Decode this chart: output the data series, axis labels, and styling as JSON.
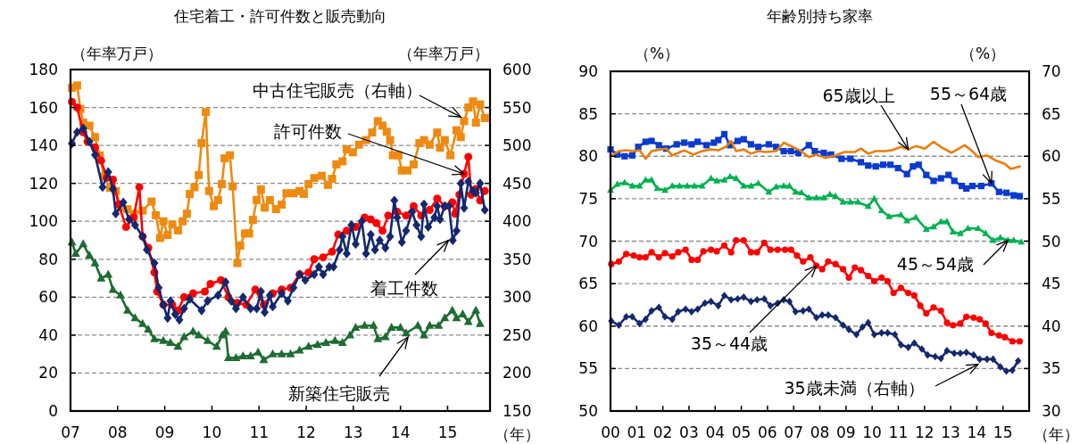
{
  "chart_data": [
    {
      "type": "line",
      "title": "住宅着工・許可件数と販売動向",
      "xlabel": "（年）",
      "ylabel": "（年率万戸）",
      "y2label": "（年率万戸）",
      "xlim": [
        2007,
        2015.9
      ],
      "xticks": [
        {
          "value": 2007,
          "label": "07"
        },
        {
          "value": 2008,
          "label": "08"
        },
        {
          "value": 2009,
          "label": "09"
        },
        {
          "value": 2010,
          "label": "10"
        },
        {
          "value": 2011,
          "label": "11"
        },
        {
          "value": 2012,
          "label": "12"
        },
        {
          "value": 2013,
          "label": "13"
        },
        {
          "value": 2014,
          "label": "14"
        },
        {
          "value": 2015,
          "label": "15"
        }
      ],
      "ylim": [
        0,
        180
      ],
      "yticks": [
        0,
        20,
        40,
        60,
        80,
        100,
        120,
        140,
        160,
        180
      ],
      "y2lim": [
        150,
        600
      ],
      "y2ticks": [
        150,
        200,
        250,
        300,
        350,
        400,
        450,
        500,
        550,
        600
      ],
      "grid": "y",
      "annotations": [
        {
          "text": "中古住宅販売（右軸）",
          "x": 2015.28,
          "y": 155
        },
        {
          "text": "許可件数",
          "x": 2015.35,
          "y": 125
        },
        {
          "text": "着工件数",
          "x": 2015.02,
          "y": 90
        },
        {
          "text": "新築住宅販売",
          "x": 2014.16,
          "y": 39
        }
      ],
      "series": [
        {
          "color": "#ee8a10",
          "marker": "square",
          "axis": "y2",
          "x": [
            2007.03,
            2007.14,
            2007.21,
            2007.27,
            2007.4,
            2007.52,
            2007.62,
            2007.71,
            2007.84,
            2007.96,
            2008.06,
            2008.21,
            2008.34,
            2008.53,
            2008.72,
            2008.81,
            2008.9,
            2008.97,
            2009.06,
            2009.16,
            2009.28,
            2009.38,
            2009.47,
            2009.53,
            2009.63,
            2009.72,
            2009.78,
            2009.87,
            2009.94,
            2010.04,
            2010.13,
            2010.21,
            2010.27,
            2010.38,
            2010.44,
            2010.54,
            2010.6,
            2010.7,
            2010.79,
            2010.87,
            2010.95,
            2011.04,
            2011.12,
            2011.23,
            2011.36,
            2011.48,
            2011.58,
            2011.73,
            2011.86,
            2011.95,
            2012.05,
            2012.17,
            2012.33,
            2012.46,
            2012.55,
            2012.64,
            2012.77,
            2012.86,
            2012.99,
            2013.12,
            2013.27,
            2013.4,
            2013.52,
            2013.62,
            2013.71,
            2013.78,
            2013.84,
            2013.96,
            2014.03,
            2014.15,
            2014.28,
            2014.4,
            2014.5,
            2014.62,
            2014.78,
            2014.84,
            2014.94,
            2015.06,
            2015.19,
            2015.28,
            2015.35,
            2015.44,
            2015.54,
            2015.6,
            2015.69,
            2015.79
          ],
          "values": [
            576,
            579,
            548,
            530,
            526,
            511,
            487,
            459,
            444,
            440,
            418,
            416,
            410,
            414,
            426,
            408,
            378,
            400,
            382,
            396,
            388,
            400,
            410,
            436,
            445,
            461,
            503,
            544,
            440,
            420,
            428,
            449,
            483,
            487,
            446,
            345,
            368,
            384,
            384,
            402,
            428,
            442,
            418,
            428,
            416,
            422,
            437,
            437,
            440,
            436,
            449,
            457,
            460,
            448,
            456,
            475,
            479,
            495,
            491,
            501,
            507,
            517,
            532,
            526,
            518,
            507,
            487,
            487,
            467,
            467,
            475,
            503,
            507,
            501,
            517,
            497,
            507,
            487,
            520,
            511,
            532,
            550,
            558,
            530,
            554,
            536
          ]
        },
        {
          "color": "#ff0000",
          "marker": "circle",
          "x": [
            2007.03,
            2007.14,
            2007.27,
            2007.36,
            2007.52,
            2007.65,
            2007.77,
            2007.9,
            2008.02,
            2008.18,
            2008.34,
            2008.46,
            2008.53,
            2008.65,
            2008.78,
            2008.84,
            2008.97,
            2009.16,
            2009.28,
            2009.41,
            2009.6,
            2009.85,
            2009.97,
            2010.19,
            2010.35,
            2010.54,
            2010.73,
            2010.92,
            2011.1,
            2011.29,
            2011.48,
            2011.67,
            2011.86,
            2012.05,
            2012.17,
            2012.36,
            2012.55,
            2012.68,
            2012.86,
            2013.05,
            2013.24,
            2013.37,
            2013.49,
            2013.62,
            2013.74,
            2013.93,
            2014.12,
            2014.28,
            2014.44,
            2014.62,
            2014.78,
            2014.94,
            2015.1,
            2015.16,
            2015.25,
            2015.35,
            2015.44,
            2015.5,
            2015.6,
            2015.69,
            2015.79
          ],
          "values": [
            163,
            160,
            147,
            142,
            139,
            132,
            123,
            122,
            109,
            97,
            102,
            118,
            92,
            86,
            73,
            63,
            56,
            56,
            53,
            60,
            62,
            63,
            67,
            69,
            60,
            57,
            56,
            64,
            56,
            62,
            64,
            65,
            72,
            73,
            80,
            81,
            84,
            93,
            95,
            97,
            102,
            101,
            99,
            95,
            103,
            105,
            103,
            108,
            103,
            106,
            112,
            108,
            110,
            104,
            114,
            125,
            134,
            114,
            117,
            111,
            116
          ]
        },
        {
          "color": "#13286e",
          "marker": "diamond",
          "x": [
            2007.03,
            2007.14,
            2007.27,
            2007.4,
            2007.52,
            2007.68,
            2007.8,
            2007.9,
            2007.96,
            2008.12,
            2008.24,
            2008.37,
            2008.53,
            2008.62,
            2008.78,
            2008.87,
            2008.97,
            2009.06,
            2009.12,
            2009.22,
            2009.31,
            2009.41,
            2009.53,
            2009.78,
            2009.91,
            2010.13,
            2010.29,
            2010.41,
            2010.51,
            2010.66,
            2010.82,
            2010.95,
            2011.04,
            2011.12,
            2011.23,
            2011.29,
            2011.48,
            2011.61,
            2011.73,
            2011.86,
            2011.98,
            2012.17,
            2012.27,
            2012.36,
            2012.49,
            2012.58,
            2012.71,
            2012.77,
            2012.86,
            2012.96,
            2013.05,
            2013.18,
            2013.27,
            2013.37,
            2013.46,
            2013.56,
            2013.68,
            2013.78,
            2013.87,
            2013.93,
            2014.03,
            2014.12,
            2014.25,
            2014.34,
            2014.44,
            2014.5,
            2014.59,
            2014.72,
            2014.78,
            2014.84,
            2014.94,
            2015.03,
            2015.11,
            2015.19,
            2015.28,
            2015.35,
            2015.44,
            2015.54,
            2015.6,
            2015.69,
            2015.79
          ],
          "values": [
            141,
            147,
            149,
            142,
            135,
            118,
            126,
            117,
            104,
            110,
            101,
            98,
            92,
            85,
            78,
            65,
            56,
            49,
            58,
            51,
            48,
            54,
            59,
            53,
            58,
            61,
            68,
            58,
            54,
            60,
            54,
            54,
            63,
            52,
            61,
            55,
            62,
            58,
            65,
            72,
            69,
            72,
            76,
            72,
            76,
            76,
            85,
            92,
            83,
            98,
            88,
            100,
            83,
            93,
            85,
            90,
            86,
            92,
            111,
            102,
            89,
            95,
            105,
            98,
            92,
            109,
            97,
            102,
            108,
            101,
            108,
            108,
            90,
            95,
            120,
            107,
            121,
            116,
            115,
            120,
            106
          ]
        },
        {
          "color": "#1f6b32",
          "marker": "triangle",
          "x": [
            2007.03,
            2007.11,
            2007.27,
            2007.4,
            2007.52,
            2007.65,
            2007.8,
            2007.9,
            2008.06,
            2008.21,
            2008.37,
            2008.53,
            2008.65,
            2008.78,
            2008.97,
            2009.12,
            2009.28,
            2009.41,
            2009.6,
            2009.72,
            2009.91,
            2010.1,
            2010.22,
            2010.29,
            2010.35,
            2010.51,
            2010.66,
            2010.82,
            2010.98,
            2011.1,
            2011.29,
            2011.48,
            2011.67,
            2011.86,
            2012.05,
            2012.24,
            2012.42,
            2012.61,
            2012.77,
            2012.93,
            2013.05,
            2013.24,
            2013.43,
            2013.52,
            2013.68,
            2013.81,
            2014.0,
            2014.12,
            2014.37,
            2014.5,
            2014.62,
            2014.81,
            2014.94,
            2015.1,
            2015.19,
            2015.32,
            2015.44,
            2015.6,
            2015.69
          ],
          "values": [
            89,
            83,
            88,
            82,
            78,
            70,
            72,
            64,
            61,
            53,
            49,
            46,
            43,
            38,
            37,
            36,
            34,
            39,
            42,
            40,
            37,
            34,
            40,
            42,
            28,
            28,
            29,
            29,
            31,
            27,
            30,
            30,
            30,
            32,
            34,
            35,
            36,
            37,
            36,
            40,
            44,
            45,
            45,
            38,
            39,
            44,
            44,
            41,
            45,
            40,
            45,
            45,
            49,
            53,
            49,
            51,
            47,
            53,
            46
          ]
        }
      ]
    },
    {
      "type": "line",
      "title": "年齢別持ち家率",
      "xlabel": "（年）",
      "ylabel": "（%）",
      "y2label": "（%）",
      "xlim": [
        2000,
        2016
      ],
      "xticks": [
        {
          "value": 2000,
          "label": "00"
        },
        {
          "value": 2001,
          "label": "01"
        },
        {
          "value": 2002,
          "label": "02"
        },
        {
          "value": 2003,
          "label": "03"
        },
        {
          "value": 2004,
          "label": "04"
        },
        {
          "value": 2005,
          "label": "05"
        },
        {
          "value": 2006,
          "label": "06"
        },
        {
          "value": 2007,
          "label": "07"
        },
        {
          "value": 2008,
          "label": "08"
        },
        {
          "value": 2009,
          "label": "09"
        },
        {
          "value": 2010,
          "label": "10"
        },
        {
          "value": 2011,
          "label": "11"
        },
        {
          "value": 2012,
          "label": "12"
        },
        {
          "value": 2013,
          "label": "13"
        },
        {
          "value": 2014,
          "label": "14"
        },
        {
          "value": 2015,
          "label": "15"
        }
      ],
      "ylim": [
        50,
        90
      ],
      "yticks": [
        50,
        55,
        60,
        65,
        70,
        75,
        80,
        85,
        90
      ],
      "y2lim": [
        30,
        70
      ],
      "y2ticks": [
        30,
        35,
        40,
        45,
        50,
        55,
        60,
        65,
        70
      ],
      "grid": "y",
      "annotations": [
        {
          "text": "65歳以上",
          "x": 2011.38,
          "y": 80.8
        },
        {
          "text": "55～64歳",
          "x": 2014.56,
          "y": 76.8
        },
        {
          "text": "45～54歳",
          "x": 2015.19,
          "y": 70.1
        },
        {
          "text": "35～44歳",
          "x": 2007.87,
          "y": 67.1
        },
        {
          "text": "35歳未満（右軸）",
          "x": 2014.05,
          "y": 55.5
        }
      ],
      "series": [
        {
          "color": "#0a3ad0",
          "marker": "square",
          "x": [
            2000.0,
            2000.26,
            2000.54,
            2000.83,
            2001.06,
            2001.34,
            2001.57,
            2001.85,
            2002.13,
            2002.53,
            2002.82,
            2003.1,
            2003.33,
            2003.67,
            2003.95,
            2004.12,
            2004.35,
            2004.57,
            2004.86,
            2005.09,
            2005.37,
            2005.65,
            2006.05,
            2006.33,
            2006.62,
            2006.9,
            2007.18,
            2007.58,
            2007.81,
            2008.15,
            2008.43,
            2008.83,
            2009.17,
            2009.57,
            2009.85,
            2010.14,
            2010.42,
            2010.7,
            2010.99,
            2011.33,
            2011.56,
            2011.78,
            2012.07,
            2012.35,
            2012.63,
            2012.92,
            2013.14,
            2013.43,
            2013.6,
            2013.83,
            2014.17,
            2014.56,
            2014.85,
            2015.13,
            2015.41,
            2015.64
          ],
          "values": [
            80.8,
            80.2,
            80.0,
            80.1,
            81.1,
            81.7,
            81.8,
            81.3,
            80.9,
            81.4,
            81.6,
            81.4,
            81.7,
            81.3,
            81.6,
            81.9,
            82.6,
            81.3,
            81.8,
            82.0,
            81.4,
            81.1,
            81.4,
            81.1,
            80.6,
            80.6,
            80.4,
            81.3,
            80.6,
            80.4,
            80.2,
            79.7,
            79.7,
            79.3,
            78.9,
            78.8,
            79.0,
            79.0,
            78.6,
            77.9,
            78.8,
            79.0,
            77.8,
            77.1,
            77.4,
            77.8,
            77.1,
            76.5,
            76.2,
            76.5,
            76.5,
            76.8,
            75.8,
            75.7,
            75.4,
            75.3
          ]
        },
        {
          "color": "#ea7d0c",
          "marker": "none",
          "x": [
            2000.0,
            2000.32,
            2000.6,
            2000.89,
            2001.11,
            2001.34,
            2001.57,
            2001.91,
            2002.13,
            2002.36,
            2002.82,
            2003.16,
            2003.5,
            2003.84,
            2004.12,
            2004.4,
            2004.61,
            2004.8,
            2005.09,
            2005.37,
            2005.65,
            2005.94,
            2006.33,
            2006.62,
            2006.9,
            2007.24,
            2007.58,
            2007.87,
            2008.21,
            2008.6,
            2008.94,
            2009.34,
            2009.57,
            2009.85,
            2010.14,
            2010.48,
            2010.76,
            2011.1,
            2011.38,
            2011.67,
            2012.01,
            2012.35,
            2012.63,
            2013.03,
            2013.54,
            2013.83,
            2014.05,
            2014.39,
            2014.73,
            2015.07,
            2015.3,
            2015.64
          ],
          "values": [
            80.0,
            80.6,
            80.7,
            80.6,
            80.7,
            79.7,
            80.6,
            80.8,
            80.9,
            80.1,
            80.7,
            80.2,
            80.6,
            80.8,
            80.7,
            81.1,
            81.8,
            80.6,
            80.8,
            80.3,
            80.6,
            80.5,
            80.6,
            81.6,
            81.2,
            80.7,
            79.9,
            80.2,
            79.8,
            80.1,
            80.5,
            80.5,
            80.9,
            80.3,
            80.6,
            80.6,
            80.7,
            81.1,
            80.8,
            81.2,
            80.9,
            81.7,
            81.1,
            80.4,
            81.3,
            80.6,
            79.9,
            80.1,
            79.5,
            79.1,
            78.5,
            78.8
          ]
        },
        {
          "color": "#00b050",
          "marker": "triangle",
          "x": [
            2000.0,
            2000.26,
            2000.54,
            2000.83,
            2001.11,
            2001.34,
            2001.57,
            2001.79,
            2002.08,
            2002.36,
            2002.64,
            2002.93,
            2003.21,
            2003.5,
            2003.84,
            2004.06,
            2004.35,
            2004.57,
            2004.8,
            2005.09,
            2005.37,
            2005.65,
            2006.05,
            2006.33,
            2006.62,
            2006.84,
            2007.07,
            2007.3,
            2007.58,
            2007.87,
            2008.15,
            2008.38,
            2008.6,
            2008.89,
            2009.17,
            2009.46,
            2009.85,
            2010.08,
            2010.36,
            2010.65,
            2011.1,
            2011.33,
            2011.67,
            2012.07,
            2012.35,
            2012.63,
            2012.86,
            2013.09,
            2013.37,
            2013.66,
            2014.05,
            2014.34,
            2014.62,
            2014.9,
            2015.19,
            2015.41,
            2015.7
          ],
          "values": [
            76.0,
            76.7,
            76.9,
            76.5,
            76.5,
            77.2,
            77.2,
            76.2,
            76.0,
            76.5,
            76.5,
            76.5,
            76.5,
            76.5,
            77.4,
            77.1,
            77.2,
            77.6,
            77.4,
            76.5,
            76.5,
            76.8,
            75.8,
            76.4,
            76.5,
            76.5,
            75.8,
            75.7,
            75.1,
            75.1,
            75.1,
            75.5,
            75.3,
            74.6,
            74.6,
            74.6,
            74.1,
            75.0,
            73.6,
            72.9,
            73.1,
            72.4,
            72.8,
            71.4,
            71.7,
            72.3,
            72.3,
            71.1,
            70.9,
            71.5,
            71.5,
            70.9,
            70.1,
            70.4,
            70.1,
            70.1,
            69.9
          ]
        },
        {
          "color": "#ff0000",
          "marker": "circle",
          "x": [
            2000.03,
            2000.32,
            2000.6,
            2000.89,
            2001.11,
            2001.34,
            2001.57,
            2001.85,
            2002.08,
            2002.36,
            2002.59,
            2002.87,
            2003.1,
            2003.33,
            2003.55,
            2003.84,
            2004.06,
            2004.35,
            2004.61,
            2004.8,
            2005.09,
            2005.37,
            2005.6,
            2005.88,
            2006.11,
            2006.39,
            2006.67,
            2006.9,
            2007.13,
            2007.36,
            2007.64,
            2007.87,
            2008.09,
            2008.32,
            2008.6,
            2008.89,
            2009.11,
            2009.34,
            2009.57,
            2009.85,
            2010.08,
            2010.36,
            2010.59,
            2010.82,
            2011.1,
            2011.38,
            2011.61,
            2011.84,
            2012.07,
            2012.35,
            2012.63,
            2012.86,
            2013.09,
            2013.37,
            2013.6,
            2013.88,
            2014.11,
            2014.34,
            2014.56,
            2014.85,
            2015.07,
            2015.36,
            2015.64
          ],
          "values": [
            67.3,
            67.6,
            68.5,
            68.3,
            68.1,
            68.1,
            68.7,
            68.1,
            68.6,
            68.2,
            68.7,
            69.0,
            67.8,
            67.8,
            68.8,
            69.0,
            68.8,
            69.5,
            68.7,
            70.1,
            70.1,
            68.7,
            68.7,
            69.8,
            69.0,
            69.0,
            69.0,
            69.0,
            68.3,
            67.6,
            68.1,
            67.1,
            66.7,
            67.6,
            67.3,
            66.7,
            65.7,
            66.9,
            66.6,
            65.9,
            65.3,
            65.7,
            65.3,
            63.9,
            64.5,
            63.9,
            63.6,
            62.4,
            61.5,
            62.2,
            61.8,
            60.4,
            60.1,
            60.3,
            61.1,
            61.0,
            60.8,
            60.3,
            59.2,
            58.9,
            58.7,
            58.2,
            58.2
          ]
        },
        {
          "color": "#13286e",
          "marker": "diamond",
          "axis": "y2",
          "x": [
            2000.03,
            2000.32,
            2000.6,
            2000.83,
            2001.11,
            2001.34,
            2001.57,
            2001.85,
            2002.08,
            2002.36,
            2002.59,
            2002.87,
            2003.1,
            2003.33,
            2003.61,
            2003.84,
            2004.12,
            2004.35,
            2004.61,
            2004.86,
            2005.09,
            2005.37,
            2005.6,
            2005.88,
            2006.11,
            2006.39,
            2006.62,
            2006.84,
            2007.07,
            2007.36,
            2007.58,
            2007.87,
            2008.09,
            2008.32,
            2008.6,
            2008.89,
            2009.11,
            2009.4,
            2009.63,
            2009.85,
            2010.08,
            2010.36,
            2010.59,
            2010.87,
            2011.1,
            2011.38,
            2011.61,
            2011.9,
            2012.12,
            2012.41,
            2012.63,
            2012.86,
            2013.14,
            2013.37,
            2013.6,
            2013.88,
            2014.11,
            2014.39,
            2014.62,
            2014.9,
            2015.13,
            2015.36,
            2015.58
          ],
          "values": [
            40.6,
            40.1,
            41.1,
            41.1,
            40.3,
            40.8,
            41.8,
            42.2,
            41.1,
            40.8,
            41.7,
            42.0,
            41.7,
            42.0,
            42.7,
            42.9,
            42.4,
            43.6,
            43.1,
            43.2,
            43.4,
            42.9,
            43.1,
            43.2,
            42.4,
            42.7,
            43.1,
            42.9,
            41.7,
            41.8,
            42.0,
            41.0,
            41.3,
            41.3,
            41.0,
            40.1,
            39.6,
            39.0,
            39.9,
            40.4,
            39.0,
            39.2,
            39.2,
            39.0,
            37.8,
            37.5,
            38.0,
            37.3,
            36.6,
            36.4,
            36.2,
            37.1,
            36.8,
            36.8,
            36.9,
            36.6,
            36.1,
            36.1,
            36.1,
            35.2,
            34.7,
            34.8,
            35.9
          ]
        }
      ]
    }
  ]
}
